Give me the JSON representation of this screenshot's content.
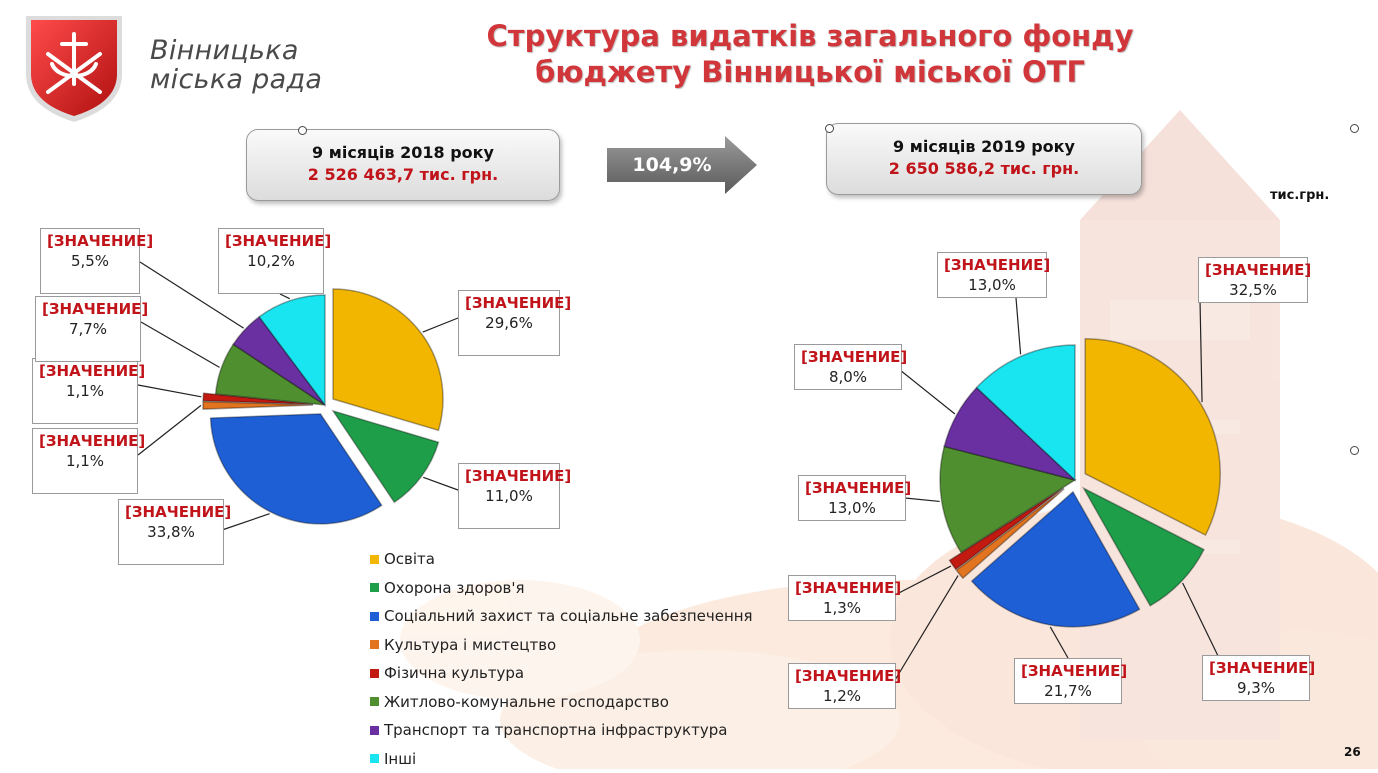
{
  "header": {
    "org_name_line1": "Вінницька",
    "org_name_line2": "міська рада",
    "title_line1": "Структура видатків загального фонду",
    "title_line2": "бюджету Вінницької міської ОТГ"
  },
  "period_2018": {
    "period": "9 місяців 2018 року",
    "amount": "2 526 463,7 тис. грн."
  },
  "period_2019": {
    "period": "9 місяців 2019 року",
    "amount": "2 650 586,2 тис. грн."
  },
  "growth": "104,9%",
  "units": "тис.грн.",
  "page_number": "26",
  "colors": {
    "education": "#f2b600",
    "health": "#1f9e4a",
    "social": "#1e5fd6",
    "culture": "#e3741f",
    "sport": "#c21a10",
    "housing": "#4f8f2f",
    "transport": "#6a2fa0",
    "other": "#19e5f0",
    "title": "#d0363a",
    "amount": "#c0141a"
  },
  "chart_data": [
    {
      "type": "pie",
      "title": "9 місяців 2018 року",
      "categories": [
        "Освіта",
        "Охорона здоров'я",
        "Соціальний захист та соціальне забезпечення",
        "Культура і мистецтво",
        "Фізична культура",
        "Житлово-комунальне господарство",
        "Транспорт та транспортна інфраструктура",
        "Інші"
      ],
      "values": [
        29.6,
        11.0,
        33.8,
        1.1,
        1.1,
        7.7,
        5.5,
        10.2
      ],
      "value_labels": [
        "29,6%",
        "11,0%",
        "33,8%",
        "1,1%",
        "1,1%",
        "7,7%",
        "5,5%",
        "10,2%"
      ],
      "label_key": "[ЗНАЧЕНИЕ]",
      "legend_placement": "bottom-center"
    },
    {
      "type": "pie",
      "title": "9 місяців 2019 року",
      "categories": [
        "Освіта",
        "Охорона здоров'я",
        "Соціальний захист та соціальне забезпечення",
        "Культура і мистецтво",
        "Фізична культура",
        "Житлово-комунальне господарство",
        "Транспорт та транспортна інфраструктура",
        "Інші"
      ],
      "values": [
        32.5,
        9.3,
        21.7,
        1.2,
        1.3,
        13.0,
        8.0,
        13.0
      ],
      "value_labels": [
        "32,5%",
        "9,3%",
        "21,7%",
        "1,2%",
        "1,3%",
        "13,0%",
        "8,0%",
        "13,0%"
      ],
      "label_key": "[ЗНАЧЕНИЕ]",
      "legend_placement": "bottom-center"
    }
  ],
  "legend": [
    {
      "label": "Освіта",
      "color": "#f2b600"
    },
    {
      "label": "Охорона здоров'я",
      "color": "#1f9e4a"
    },
    {
      "label": "Соціальний захист та соціальне забезпечення",
      "color": "#1e5fd6"
    },
    {
      "label": "Культура і мистецтво",
      "color": "#e3741f"
    },
    {
      "label": "Фізична культура",
      "color": "#c21a10"
    },
    {
      "label": "Житлово-комунальне господарство",
      "color": "#4f8f2f"
    },
    {
      "label": "Транспорт та транспортна інфраструктура",
      "color": "#6a2fa0"
    },
    {
      "label": "Інші",
      "color": "#19e5f0"
    }
  ]
}
